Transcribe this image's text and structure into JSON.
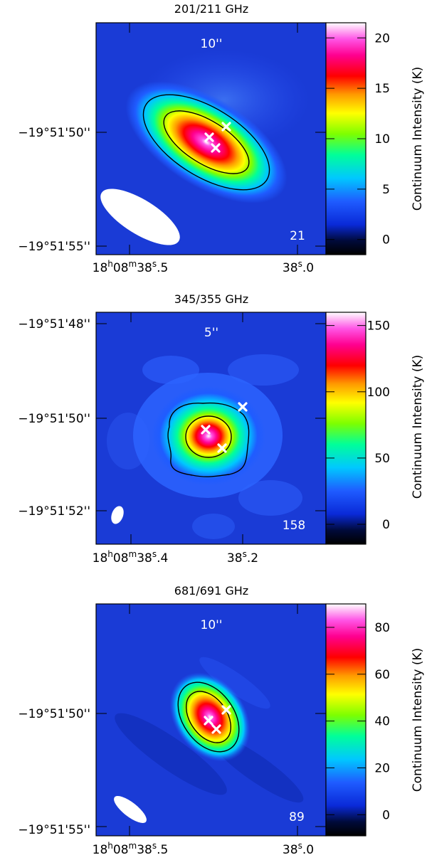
{
  "chart_data": [
    {
      "type": "heatmap",
      "title": "201/211 GHz",
      "scale_label": "10''",
      "peak_label": "21",
      "colorbar": {
        "label": "Continuum Intensity (K)",
        "range": [
          -1.5,
          21.5
        ],
        "ticks": [
          "0",
          "5",
          "10",
          "15",
          "20"
        ],
        "tick_values": [
          0,
          5,
          10,
          15,
          20
        ]
      },
      "x_tick_labels": [
        "18h08m38.5s",
        "38.0s"
      ],
      "y_tick_labels": [
        "−19°51'50''",
        "−19°51'55''"
      ],
      "contour_levels": 2,
      "sources": 3
    },
    {
      "type": "heatmap",
      "title": "345/355 GHz",
      "scale_label": "5''",
      "peak_label": "158",
      "colorbar": {
        "label": "Continuum Intensity (K)",
        "range": [
          -15,
          160
        ],
        "ticks": [
          "0",
          "50",
          "100",
          "150"
        ],
        "tick_values": [
          0,
          50,
          100,
          150
        ]
      },
      "x_tick_labels": [
        "18h08m38.4s",
        "38.2s"
      ],
      "y_tick_labels": [
        "−19°51'48''",
        "−19°51'50''",
        "−19°51'52''"
      ],
      "contour_levels": 2,
      "sources": 3
    },
    {
      "type": "heatmap",
      "title": "681/691 GHz",
      "scale_label": "10''",
      "peak_label": "89",
      "colorbar": {
        "label": "Continuum Intensity (K)",
        "range": [
          -9,
          90
        ],
        "ticks": [
          "0",
          "20",
          "40",
          "60",
          "80"
        ],
        "tick_values": [
          0,
          20,
          40,
          60,
          80
        ]
      },
      "x_tick_labels": [
        "18h08m38.5s",
        "38.0s"
      ],
      "y_tick_labels": [
        "−19°51'50''",
        "−19°51'55''"
      ],
      "contour_levels": 2,
      "sources": 3
    }
  ],
  "colors": {
    "background": "#1a3bd6",
    "beam": "#ffffff",
    "markers": "#ffffff",
    "contours": "#000000"
  }
}
